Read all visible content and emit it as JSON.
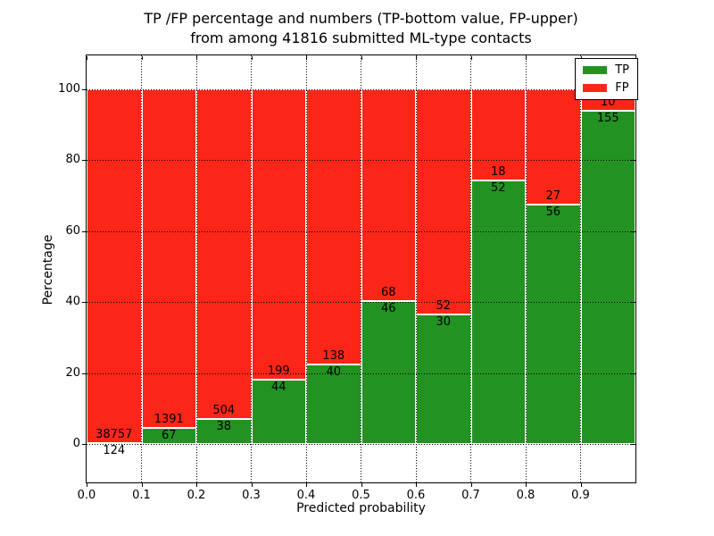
{
  "figure": {
    "title_line1": "TP /FP percentage and numbers (TP-bottom value, FP-upper)",
    "title_line2": "from among 41816 submitted ML-type contacts",
    "xlabel": "Predicted probability",
    "ylabel": "Percentage"
  },
  "colors": {
    "tp": "#229322",
    "fp": "#fb2618"
  },
  "legend": {
    "items": [
      {
        "label": "TP",
        "color_key": "tp"
      },
      {
        "label": "FP",
        "color_key": "fp"
      }
    ]
  },
  "chart_data": {
    "type": "bar",
    "stacked": true,
    "normalized_to_percent": true,
    "title": "TP /FP percentage and numbers (TP-bottom value, FP-upper) from among 41816 submitted ML-type contacts",
    "xlabel": "Predicted probability",
    "ylabel": "Percentage",
    "xlim": [
      0.0,
      1.0
    ],
    "ylim": [
      -10.8,
      109.6
    ],
    "grid": true,
    "grid_style": "dotted",
    "legend_position": "upper right",
    "x_tick_labels": [
      "0.0",
      "0.1",
      "0.2",
      "0.3",
      "0.4",
      "0.5",
      "0.6",
      "0.7",
      "0.8",
      "0.9"
    ],
    "y_ticks": [
      0,
      20,
      40,
      60,
      80,
      100
    ],
    "y_tick_labels": [
      "0",
      "20",
      "40",
      "60",
      "80",
      "100"
    ],
    "total_submitted": 41816,
    "bins": [
      {
        "x0": 0.0,
        "x1": 0.1,
        "tp": 124,
        "fp": 38757
      },
      {
        "x0": 0.1,
        "x1": 0.2,
        "tp": 67,
        "fp": 1391
      },
      {
        "x0": 0.2,
        "x1": 0.3,
        "tp": 38,
        "fp": 504
      },
      {
        "x0": 0.3,
        "x1": 0.4,
        "tp": 44,
        "fp": 199
      },
      {
        "x0": 0.4,
        "x1": 0.5,
        "tp": 40,
        "fp": 138
      },
      {
        "x0": 0.5,
        "x1": 0.6,
        "tp": 46,
        "fp": 68
      },
      {
        "x0": 0.6,
        "x1": 0.7,
        "tp": 30,
        "fp": 52
      },
      {
        "x0": 0.7,
        "x1": 0.8,
        "tp": 52,
        "fp": 18
      },
      {
        "x0": 0.8,
        "x1": 0.9,
        "tp": 56,
        "fp": 27
      },
      {
        "x0": 0.9,
        "x1": 1.0,
        "tp": 155,
        "fp": 10
      }
    ],
    "series": [
      {
        "name": "TP",
        "color_key": "tp",
        "counts": [
          124,
          67,
          38,
          44,
          40,
          46,
          30,
          52,
          56,
          155
        ]
      },
      {
        "name": "FP",
        "color_key": "fp",
        "counts": [
          38757,
          1391,
          504,
          199,
          138,
          68,
          52,
          18,
          27,
          10
        ]
      }
    ]
  }
}
